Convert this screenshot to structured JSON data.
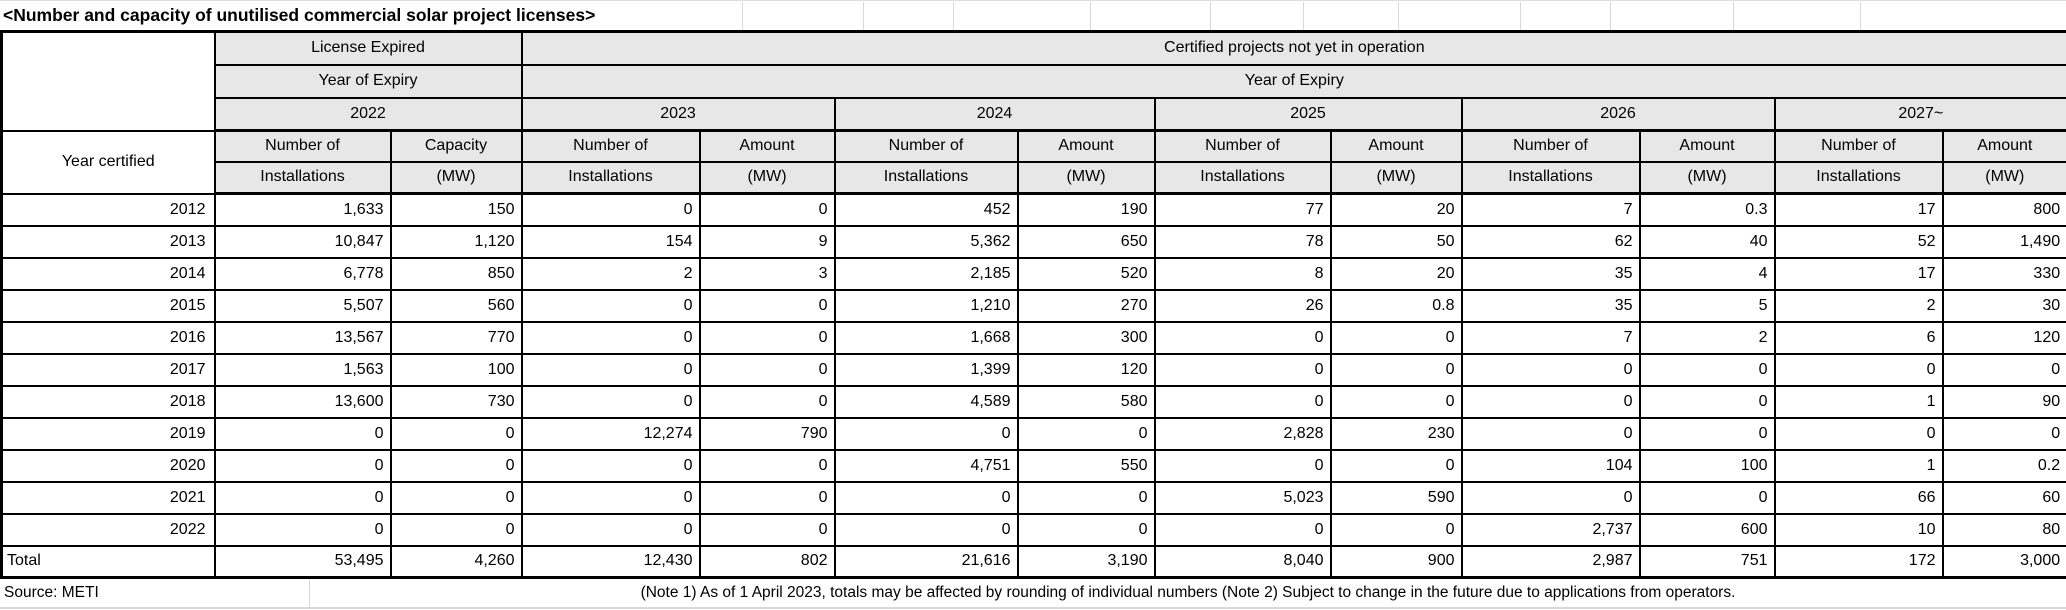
{
  "title": "<Number and capacity of unutilised commercial solar project licenses>",
  "colors": {
    "header_bg": "#e8e7e7",
    "border": "#000000",
    "gridline": "#d9d9d9"
  },
  "table": {
    "row_header_label": "Year certified",
    "groups": [
      {
        "label": "License Expired",
        "expiry_label": "Year of Expiry"
      },
      {
        "label": "Certified projects not yet in operation",
        "expiry_label": "Year of Expiry"
      }
    ],
    "year_columns": [
      {
        "year": "2022",
        "col1": [
          "Number of",
          "Installations"
        ],
        "col2": [
          "Capacity",
          "(MW)"
        ]
      },
      {
        "year": "2023",
        "col1": [
          "Number of",
          "Installations"
        ],
        "col2": [
          "Amount",
          "(MW)"
        ]
      },
      {
        "year": "2024",
        "col1": [
          "Number of",
          "Installations"
        ],
        "col2": [
          "Amount",
          "(MW)"
        ]
      },
      {
        "year": "2025",
        "col1": [
          "Number of",
          "Installations"
        ],
        "col2": [
          "Amount",
          "(MW)"
        ]
      },
      {
        "year": "2026",
        "col1": [
          "Number of",
          "Installations"
        ],
        "col2": [
          "Amount",
          "(MW)"
        ]
      },
      {
        "year": "2027~",
        "col1": [
          "Number of",
          "Installations"
        ],
        "col2": [
          "Amount",
          "(MW)"
        ]
      }
    ],
    "rows": [
      {
        "label": "2012",
        "values": [
          "1,633",
          "150",
          "0",
          "0",
          "452",
          "190",
          "77",
          "20",
          "7",
          "0.3",
          "17",
          "800"
        ]
      },
      {
        "label": "2013",
        "values": [
          "10,847",
          "1,120",
          "154",
          "9",
          "5,362",
          "650",
          "78",
          "50",
          "62",
          "40",
          "52",
          "1,490"
        ]
      },
      {
        "label": "2014",
        "values": [
          "6,778",
          "850",
          "2",
          "3",
          "2,185",
          "520",
          "8",
          "20",
          "35",
          "4",
          "17",
          "330"
        ]
      },
      {
        "label": "2015",
        "values": [
          "5,507",
          "560",
          "0",
          "0",
          "1,210",
          "270",
          "26",
          "0.8",
          "35",
          "5",
          "2",
          "30"
        ]
      },
      {
        "label": "2016",
        "values": [
          "13,567",
          "770",
          "0",
          "0",
          "1,668",
          "300",
          "0",
          "0",
          "7",
          "2",
          "6",
          "120"
        ]
      },
      {
        "label": "2017",
        "values": [
          "1,563",
          "100",
          "0",
          "0",
          "1,399",
          "120",
          "0",
          "0",
          "0",
          "0",
          "0",
          "0"
        ]
      },
      {
        "label": "2018",
        "values": [
          "13,600",
          "730",
          "0",
          "0",
          "4,589",
          "580",
          "0",
          "0",
          "0",
          "0",
          "1",
          "90"
        ]
      },
      {
        "label": "2019",
        "values": [
          "0",
          "0",
          "12,274",
          "790",
          "0",
          "0",
          "2,828",
          "230",
          "0",
          "0",
          "0",
          "0"
        ]
      },
      {
        "label": "2020",
        "values": [
          "0",
          "0",
          "0",
          "0",
          "4,751",
          "550",
          "0",
          "0",
          "104",
          "100",
          "1",
          "0.2"
        ]
      },
      {
        "label": "2021",
        "values": [
          "0",
          "0",
          "0",
          "0",
          "0",
          "0",
          "5,023",
          "590",
          "0",
          "0",
          "66",
          "60"
        ]
      },
      {
        "label": "2022",
        "values": [
          "0",
          "0",
          "0",
          "0",
          "0",
          "0",
          "0",
          "0",
          "2,737",
          "600",
          "10",
          "80"
        ]
      },
      {
        "label": "Total",
        "values": [
          "53,495",
          "4,260",
          "12,430",
          "802",
          "21,616",
          "3,190",
          "8,040",
          "900",
          "2,987",
          "751",
          "172",
          "3,000"
        ]
      }
    ]
  },
  "footer": {
    "source": "Source: METI",
    "note": "(Note 1) As of 1 April 2023, totals may be affected by rounding of individual numbers (Note 2) Subject to change in the future due to applications from operators."
  }
}
